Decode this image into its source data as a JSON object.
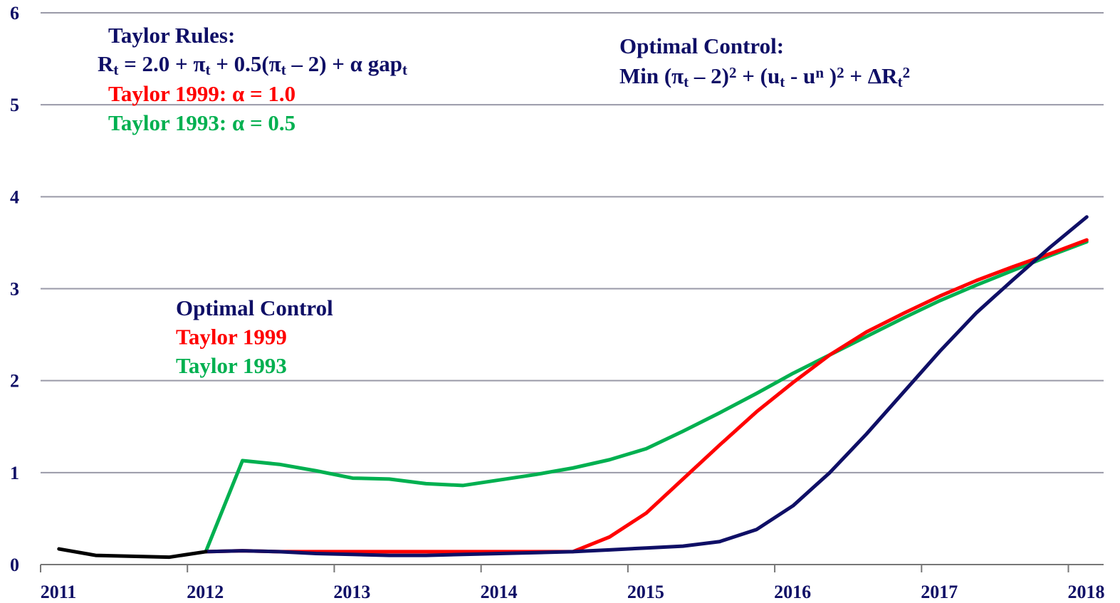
{
  "chart_data": {
    "type": "line",
    "x": [
      2011.125,
      2011.375,
      2011.625,
      2011.875,
      2012.125,
      2012.375,
      2012.625,
      2012.875,
      2013.125,
      2013.375,
      2013.625,
      2013.875,
      2014.125,
      2014.375,
      2014.625,
      2014.875,
      2015.125,
      2015.375,
      2015.625,
      2015.875,
      2016.125,
      2016.375,
      2016.625,
      2016.875,
      2017.125,
      2017.375,
      2017.625,
      2017.875,
      2018.125
    ],
    "series": [
      {
        "name": "Optimal Control",
        "color": "#0f0f66",
        "values": [
          null,
          null,
          null,
          null,
          0.14,
          0.15,
          0.14,
          0.12,
          0.11,
          0.1,
          0.1,
          0.11,
          0.12,
          0.13,
          0.14,
          0.16,
          0.18,
          0.2,
          0.25,
          0.38,
          0.64,
          1.0,
          1.42,
          1.87,
          2.32,
          2.74,
          3.1,
          3.45,
          3.78
        ]
      },
      {
        "name": "Taylor 1999",
        "color": "#ff0000",
        "values": [
          null,
          null,
          null,
          null,
          0.14,
          0.15,
          0.14,
          0.14,
          0.14,
          0.14,
          0.14,
          0.14,
          0.14,
          0.14,
          0.14,
          0.3,
          0.56,
          0.93,
          1.3,
          1.66,
          1.98,
          2.28,
          2.53,
          2.73,
          2.92,
          3.09,
          3.24,
          3.38,
          3.53
        ]
      },
      {
        "name": "Taylor 1993",
        "color": "#00b050",
        "values": [
          null,
          null,
          null,
          null,
          0.14,
          1.13,
          1.09,
          1.02,
          0.94,
          0.93,
          0.88,
          0.86,
          0.92,
          0.98,
          1.05,
          1.14,
          1.26,
          1.45,
          1.65,
          1.86,
          2.08,
          2.28,
          2.48,
          2.68,
          2.87,
          3.04,
          3.2,
          3.36,
          3.51
        ]
      },
      {
        "color": "#000000",
        "values": [
          0.17,
          0.1,
          0.09,
          0.08,
          0.14,
          null,
          null,
          null,
          null,
          null,
          null,
          null,
          null,
          null,
          null,
          null,
          null,
          null,
          null,
          null,
          null,
          null,
          null,
          null,
          null,
          null,
          null,
          null,
          null
        ]
      }
    ],
    "xlim": [
      2011,
      2018.24
    ],
    "xticks": [
      2011,
      2012,
      2013,
      2014,
      2015,
      2016,
      2017,
      2018
    ],
    "ylim": [
      0,
      6
    ],
    "yticks": [
      0,
      1,
      2,
      3,
      4,
      5,
      6
    ],
    "grid": true,
    "annotations": {
      "taylor_rules": "Taylor Rules:",
      "taylor_formula": [
        {
          "text": "R"
        },
        {
          "sub": "t"
        },
        {
          "text": " = 2.0 + π"
        },
        {
          "sub": "t"
        },
        {
          "text": " + 0.5(π"
        },
        {
          "sub": "t"
        },
        {
          "text": " – 2) + α gap"
        },
        {
          "sub": "t"
        }
      ],
      "taylor_1999": "Taylor 1999: α = 1.0",
      "taylor_1993": "Taylor 1993: α = 0.5",
      "optimal_title": "Optimal Control:",
      "optimal_formula": [
        {
          "text": "Min (π"
        },
        {
          "sub": "t"
        },
        {
          "text": " – 2)"
        },
        {
          "sup": "2"
        },
        {
          "text": " + (u"
        },
        {
          "sub": "t"
        },
        {
          "text": " - u"
        },
        {
          "sup": "n"
        },
        {
          "text": " )"
        },
        {
          "sup": "2"
        },
        {
          "text": " + ΔR"
        },
        {
          "sub": "t"
        },
        {
          "sup": "2"
        }
      ]
    }
  }
}
